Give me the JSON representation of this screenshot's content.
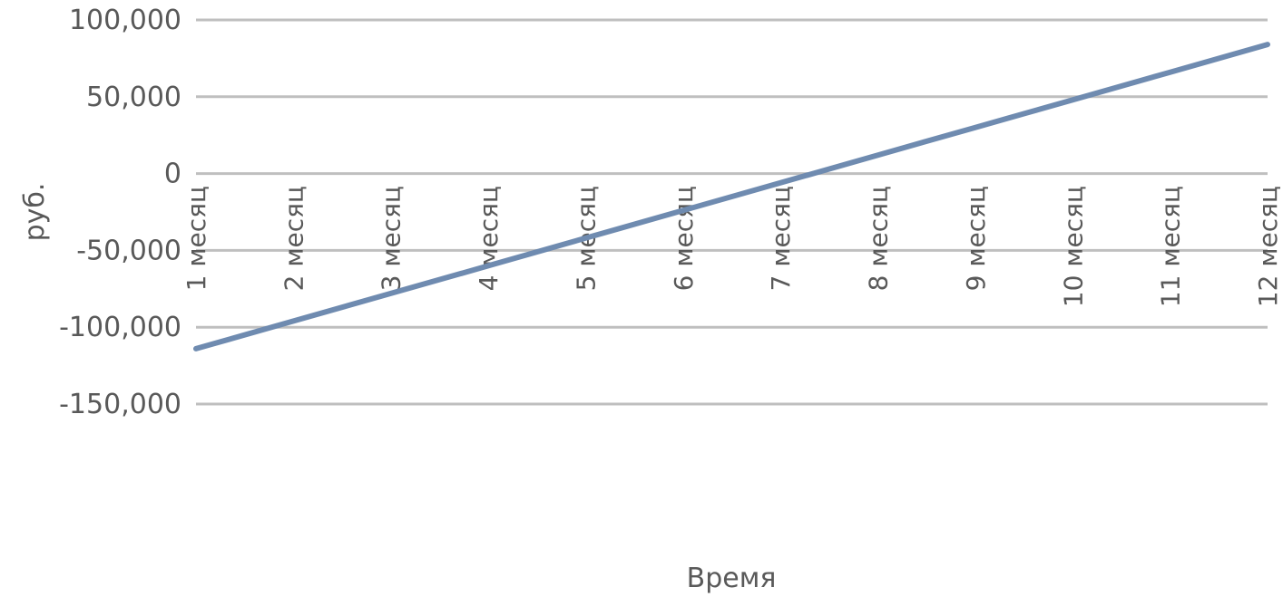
{
  "chart_data": {
    "type": "line",
    "title": "",
    "xlabel": "Время",
    "ylabel": "руб.",
    "categories": [
      "1 месяц",
      "2 месяц",
      "3 месяц",
      "4 месяц",
      "5 месяц",
      "6 месяц",
      "7 месяц",
      "8 месяц",
      "9 месяц",
      "10 месяц",
      "11 месяц",
      "12 месяц"
    ],
    "series": [
      {
        "values": [
          -114000,
          -96000,
          -78000,
          -60000,
          -42000,
          -24000,
          -6000,
          12000,
          30000,
          48000,
          66000,
          84000
        ]
      }
    ],
    "ylim": [
      -150000,
      100000
    ],
    "yticks": [
      100000,
      50000,
      0,
      -50000,
      -100000,
      -150000
    ],
    "ytick_labels": [
      "100,000",
      "50,000",
      "0",
      "-50,000",
      "-100,000",
      "-150,000"
    ],
    "grid": true,
    "legend": "none",
    "colors": {
      "line": "#6f8bb0",
      "grid": "#bfbfbf",
      "text": "#595959"
    }
  }
}
